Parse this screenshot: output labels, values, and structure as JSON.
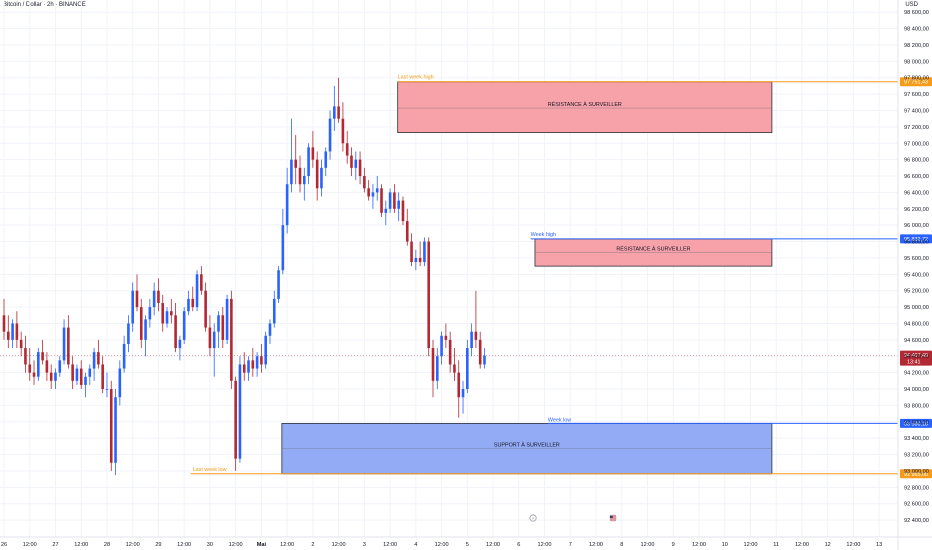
{
  "header": {
    "title": "Bitcoin / Dollar · 2h · BINANCE",
    "currency": "USD"
  },
  "chart_data": {
    "type": "candlestick",
    "y_ticks": [
      92400,
      92600,
      92800,
      93000,
      93200,
      93400,
      93600,
      93800,
      94000,
      94200,
      94400,
      94600,
      94800,
      95000,
      95200,
      95400,
      95600,
      95800,
      96000,
      96200,
      96400,
      96600,
      96800,
      97000,
      97200,
      97400,
      97600,
      97800,
      98000,
      98200,
      98400,
      98600
    ],
    "y_tick_labels": [
      "92 400,00",
      "92 600,00",
      "92 800,00",
      "93 000,00",
      "93 200,00",
      "93 400,00",
      "93 600,00",
      "93 800,00",
      "94 000,00",
      "94 200,00",
      "94 400,00",
      "94 600,00",
      "94 800,00",
      "95 000,00",
      "95 200,00",
      "95 400,00",
      "95 600,00",
      "95 800,00",
      "96 000,00",
      "96 200,00",
      "96 400,00",
      "96 600,00",
      "96 800,00",
      "97 000,00",
      "97 200,00",
      "97 400,00",
      "97 600,00",
      "97 800,00",
      "98 000,00",
      "98 200,00",
      "98 400,00",
      "98 600,00"
    ],
    "ylim": [
      92340,
      98700
    ],
    "x_ticks": [
      {
        "i": 0,
        "label": "26"
      },
      {
        "i": 6,
        "label": "12:00"
      },
      {
        "i": 12,
        "label": "27"
      },
      {
        "i": 18,
        "label": "12:00"
      },
      {
        "i": 24,
        "label": "28"
      },
      {
        "i": 30,
        "label": "12:00"
      },
      {
        "i": 36,
        "label": "29"
      },
      {
        "i": 42,
        "label": "12:00"
      },
      {
        "i": 48,
        "label": "30"
      },
      {
        "i": 54,
        "label": "12:00"
      },
      {
        "i": 60,
        "label": "Mai"
      },
      {
        "i": 66,
        "label": "12:00"
      },
      {
        "i": 72,
        "label": "2"
      },
      {
        "i": 78,
        "label": "12:00"
      },
      {
        "i": 84,
        "label": "3"
      },
      {
        "i": 90,
        "label": "12:00"
      },
      {
        "i": 96,
        "label": "4"
      },
      {
        "i": 102,
        "label": "12:00"
      },
      {
        "i": 108,
        "label": "5"
      },
      {
        "i": 114,
        "label": "12:00"
      },
      {
        "i": 120,
        "label": "6"
      },
      {
        "i": 126,
        "label": "12:00"
      },
      {
        "i": 132,
        "label": "7"
      },
      {
        "i": 138,
        "label": "12:00"
      },
      {
        "i": 144,
        "label": "8"
      },
      {
        "i": 150,
        "label": "12:00"
      },
      {
        "i": 156,
        "label": "9"
      },
      {
        "i": 162,
        "label": "12:00"
      },
      {
        "i": 168,
        "label": "10"
      },
      {
        "i": 174,
        "label": "12:00"
      },
      {
        "i": 180,
        "label": "11"
      },
      {
        "i": 186,
        "label": "12:00"
      },
      {
        "i": 192,
        "label": "12"
      },
      {
        "i": 198,
        "label": "12:00"
      },
      {
        "i": 204,
        "label": "13"
      }
    ],
    "ohlc": [
      [
        94900,
        95100,
        94600,
        94700
      ],
      [
        94700,
        94900,
        94500,
        94600
      ],
      [
        94600,
        94850,
        94500,
        94800
      ],
      [
        94800,
        94950,
        94500,
        94600
      ],
      [
        94600,
        94700,
        94400,
        94500
      ],
      [
        94500,
        94650,
        94200,
        94300
      ],
      [
        94300,
        94500,
        94100,
        94200
      ],
      [
        94200,
        94350,
        94050,
        94150
      ],
      [
        94150,
        94500,
        94100,
        94450
      ],
      [
        94450,
        94600,
        94300,
        94350
      ],
      [
        94350,
        94450,
        94100,
        94200
      ],
      [
        94200,
        94300,
        94000,
        94100
      ],
      [
        94100,
        94250,
        94000,
        94200
      ],
      [
        94200,
        94400,
        94150,
        94350
      ],
      [
        94350,
        94850,
        94300,
        94750
      ],
      [
        94750,
        94900,
        94250,
        94300
      ],
      [
        94300,
        94400,
        94000,
        94100
      ],
      [
        94100,
        94300,
        94050,
        94250
      ],
      [
        94250,
        94350,
        94000,
        94050
      ],
      [
        94050,
        94200,
        93900,
        94150
      ],
      [
        94150,
        94300,
        94050,
        94250
      ],
      [
        94250,
        94500,
        94100,
        94450
      ],
      [
        94450,
        94600,
        94250,
        94300
      ],
      [
        94300,
        94400,
        93950,
        94000
      ],
      [
        94000,
        94200,
        93900,
        94000
      ],
      [
        94000,
        94100,
        93000,
        93100
      ],
      [
        93100,
        94000,
        92950,
        93900
      ],
      [
        93900,
        94350,
        93800,
        94250
      ],
      [
        94250,
        94650,
        94200,
        94550
      ],
      [
        94550,
        94900,
        94450,
        94800
      ],
      [
        94800,
        95300,
        94700,
        95200
      ],
      [
        95200,
        95400,
        94950,
        95000
      ],
      [
        95000,
        95100,
        94500,
        94600
      ],
      [
        94600,
        94900,
        94400,
        94850
      ],
      [
        94850,
        95100,
        94750,
        95000
      ],
      [
        95000,
        95300,
        94900,
        95200
      ],
      [
        95200,
        95350,
        94950,
        95050
      ],
      [
        95050,
        95150,
        94700,
        94800
      ],
      [
        94800,
        95000,
        94750,
        94950
      ],
      [
        94950,
        95100,
        94800,
        94900
      ],
      [
        94900,
        95050,
        94450,
        94500
      ],
      [
        94500,
        94650,
        94350,
        94600
      ],
      [
        94600,
        95000,
        94550,
        94950
      ],
      [
        94950,
        95200,
        94900,
        95100
      ],
      [
        95100,
        95250,
        94950,
        95000
      ],
      [
        95000,
        95450,
        94950,
        95400
      ],
      [
        95400,
        95500,
        95150,
        95200
      ],
      [
        95200,
        95300,
        94700,
        94750
      ],
      [
        94750,
        94900,
        94400,
        94500
      ],
      [
        94500,
        94800,
        94150,
        94700
      ],
      [
        94700,
        94950,
        94500,
        94900
      ],
      [
        94900,
        95000,
        94500,
        94600
      ],
      [
        94600,
        95150,
        94550,
        95100
      ],
      [
        95100,
        95200,
        94000,
        94100
      ],
      [
        94100,
        94150,
        93000,
        93150
      ],
      [
        93150,
        94400,
        93100,
        94300
      ],
      [
        94300,
        94450,
        94100,
        94200
      ],
      [
        94200,
        94400,
        94100,
        94350
      ],
      [
        94350,
        94500,
        94150,
        94250
      ],
      [
        94250,
        94450,
        94150,
        94400
      ],
      [
        94400,
        94550,
        94200,
        94300
      ],
      [
        94300,
        94700,
        94250,
        94650
      ],
      [
        94650,
        94850,
        94550,
        94800
      ],
      [
        94800,
        95200,
        94750,
        95100
      ],
      [
        95100,
        95500,
        95050,
        95450
      ],
      [
        95450,
        96200,
        95400,
        96000
      ],
      [
        96000,
        96700,
        95900,
        96500
      ],
      [
        96500,
        97300,
        96400,
        96800
      ],
      [
        96800,
        97100,
        96500,
        96700
      ],
      [
        96700,
        96850,
        96400,
        96500
      ],
      [
        96500,
        96700,
        96300,
        96600
      ],
      [
        96600,
        97000,
        96500,
        96950
      ],
      [
        96950,
        97150,
        96700,
        96800
      ],
      [
        96800,
        96900,
        96300,
        96450
      ],
      [
        96450,
        96800,
        96350,
        96700
      ],
      [
        96700,
        96950,
        96600,
        96900
      ],
      [
        96900,
        97400,
        96800,
        97300
      ],
      [
        97300,
        97700,
        97150,
        97450
      ],
      [
        97450,
        97800,
        97250,
        97300
      ],
      [
        97300,
        97500,
        96900,
        97000
      ],
      [
        97000,
        97150,
        96750,
        96850
      ],
      [
        96850,
        96950,
        96600,
        96700
      ],
      [
        96700,
        96900,
        96550,
        96800
      ],
      [
        96800,
        96900,
        96500,
        96600
      ],
      [
        96600,
        96700,
        96400,
        96450
      ],
      [
        96450,
        96550,
        96300,
        96350
      ],
      [
        96350,
        96500,
        96200,
        96400
      ],
      [
        96400,
        96600,
        96300,
        96450
      ],
      [
        96450,
        96500,
        96100,
        96150
      ],
      [
        96150,
        96300,
        96000,
        96200
      ],
      [
        96200,
        96450,
        96150,
        96400
      ],
      [
        96400,
        96500,
        96150,
        96200
      ],
      [
        96200,
        96400,
        96050,
        96300
      ],
      [
        96300,
        96350,
        96000,
        96050
      ],
      [
        96050,
        96200,
        95750,
        95800
      ],
      [
        95800,
        95900,
        95500,
        95550
      ],
      [
        95550,
        95700,
        95450,
        95600
      ],
      [
        95600,
        95800,
        95500,
        95550
      ],
      [
        95550,
        95850,
        95500,
        95800
      ],
      [
        95800,
        95850,
        94400,
        94500
      ],
      [
        94500,
        94600,
        93900,
        94100
      ],
      [
        94100,
        94500,
        94000,
        94400
      ],
      [
        94400,
        94700,
        94300,
        94650
      ],
      [
        94650,
        94800,
        94500,
        94600
      ],
      [
        94600,
        94700,
        94200,
        94300
      ],
      [
        94300,
        94500,
        94100,
        94200
      ],
      [
        94200,
        94350,
        93650,
        93900
      ],
      [
        93900,
        94100,
        93700,
        94000
      ],
      [
        94000,
        94600,
        93950,
        94500
      ],
      [
        94500,
        94800,
        94400,
        94700
      ],
      [
        94700,
        95200,
        94500,
        94600
      ],
      [
        94600,
        94700,
        94250,
        94300
      ],
      [
        94300,
        94500,
        94250,
        94407
      ]
    ],
    "colors": {
      "up": "#2962ff",
      "down": "#b22833",
      "resistance_fill": "#f7a1a9",
      "resistance_border": "#2a2e39",
      "support_fill": "#93abf5",
      "support_border": "#2a2e39",
      "orange_line": "#f59b17",
      "blue_line": "#2962ff",
      "grid": "#f0f3fa",
      "axis_text": "#131722"
    },
    "zones": [
      {
        "name": "RÉSISTANCE À SURVEILLER",
        "top": 97750,
        "bottom": 97130,
        "mid": 97430,
        "start_i": 92,
        "end_i": 179,
        "kind": "resistance"
      },
      {
        "name": "RÉSISTANCE À SURVEILLER",
        "top": 95832,
        "bottom": 95500,
        "mid": 95665,
        "start_i": 124,
        "end_i": 179,
        "kind": "resistance"
      },
      {
        "name": "SUPPORT À SURVEILLER",
        "top": 93580,
        "bottom": 92965,
        "mid": 93275,
        "start_i": 65,
        "end_i": 179,
        "kind": "support"
      }
    ],
    "levels": [
      {
        "label": "Last week high",
        "price": 97751.43,
        "price_label": "97 751,43",
        "start_i": 92,
        "color": "orange"
      },
      {
        "label": "Week high",
        "price": 95832.72,
        "price_label": "95 832,72",
        "start_i": 123,
        "color": "blue"
      },
      {
        "label": "Week low",
        "price": 93580.18,
        "price_label": "93 580,18",
        "start_i": 127,
        "color": "blue"
      },
      {
        "label": "Last week low",
        "price": 92965.0,
        "price_label": "92 965,00",
        "start_i": 54,
        "color": "orange"
      }
    ],
    "current": {
      "price": 94407.49,
      "price_label": "94 407,49",
      "countdown": "13:41"
    }
  }
}
